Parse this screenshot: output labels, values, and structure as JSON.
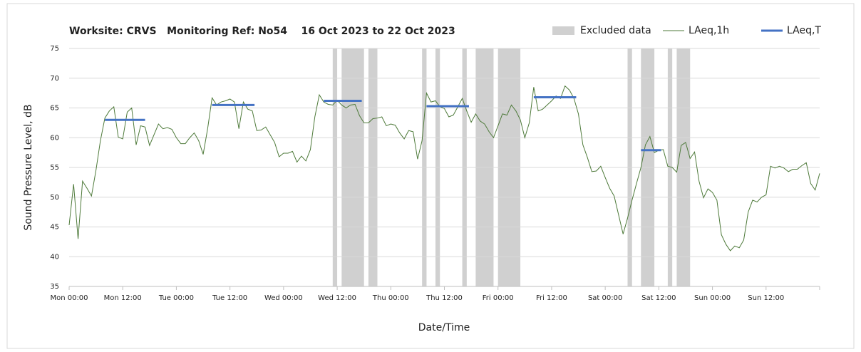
{
  "chart_data": {
    "type": "line",
    "title": "Worksite: CRVS   Monitoring Ref: No54    16 Oct 2023 to 22 Oct 2023",
    "y_label": "Sound Pressure Level, dB",
    "x_label": "Date/Time",
    "xlim": [
      0,
      168
    ],
    "xticks": [
      {
        "value": 0,
        "label": "Mon 00:00"
      },
      {
        "value": 12,
        "label": "Mon 12:00"
      },
      {
        "value": 24,
        "label": "Tue 00:00"
      },
      {
        "value": 36,
        "label": "Tue 12:00"
      },
      {
        "value": 48,
        "label": "Wed 00:00"
      },
      {
        "value": 60,
        "label": "Wed 12:00"
      },
      {
        "value": 72,
        "label": "Thu 00:00"
      },
      {
        "value": 84,
        "label": "Thu 12:00"
      },
      {
        "value": 96,
        "label": "Fri 00:00"
      },
      {
        "value": 108,
        "label": "Fri 12:00"
      },
      {
        "value": 120,
        "label": "Sat 00:00"
      },
      {
        "value": 132,
        "label": "Sat 12:00"
      },
      {
        "value": 144,
        "label": "Sun 00:00"
      },
      {
        "value": 156,
        "label": "Sun 12:00"
      },
      168
    ],
    "ylim": [
      35,
      75
    ],
    "yticks": [
      35,
      40,
      45,
      50,
      55,
      60,
      65,
      70,
      75
    ],
    "grid": true,
    "legend": "top-right",
    "excluded": {
      "name": "Excluded data",
      "color": "#d0d0d0",
      "ranges": [
        [
          59,
          60
        ],
        [
          61,
          66
        ],
        [
          67,
          69
        ],
        [
          79,
          80
        ],
        [
          82,
          83
        ],
        [
          88,
          89
        ],
        [
          91,
          95
        ],
        [
          96,
          101
        ],
        [
          125,
          126
        ],
        [
          128,
          131
        ],
        [
          134,
          135
        ],
        [
          136,
          139
        ]
      ]
    },
    "x": [
      0,
      1,
      2,
      3,
      4,
      5,
      6,
      7,
      8,
      9,
      10,
      11,
      12,
      13,
      14,
      15,
      16,
      17,
      18,
      19,
      20,
      21,
      22,
      23,
      24,
      25,
      26,
      27,
      28,
      29,
      30,
      31,
      32,
      33,
      34,
      35,
      36,
      37,
      38,
      39,
      40,
      41,
      42,
      43,
      44,
      45,
      46,
      47,
      48,
      49,
      50,
      51,
      52,
      53,
      54,
      55,
      56,
      57,
      58,
      59,
      60,
      61,
      62,
      63,
      64,
      65,
      66,
      67,
      68,
      69,
      70,
      71,
      72,
      73,
      74,
      75,
      76,
      77,
      78,
      79,
      80,
      81,
      82,
      83,
      84,
      85,
      86,
      87,
      88,
      89,
      90,
      91,
      92,
      93,
      94,
      95,
      96,
      97,
      98,
      99,
      100,
      101,
      102,
      103,
      104,
      105,
      106,
      107,
      108,
      109,
      110,
      111,
      112,
      113,
      114,
      115,
      116,
      117,
      118,
      119,
      120,
      121,
      122,
      123,
      124,
      125,
      126,
      127,
      128,
      129,
      130,
      131,
      132,
      133,
      134,
      135,
      136,
      137,
      138,
      139,
      140,
      141,
      142,
      143,
      144,
      145,
      146,
      147,
      148,
      149,
      150,
      151,
      152,
      153,
      154,
      155,
      156,
      157,
      158,
      159,
      160,
      161,
      162,
      163,
      164,
      165,
      166,
      167,
      168
    ],
    "series": [
      {
        "name": "LAeq,1h",
        "color": "#4e7a3a",
        "values": [
          45.3,
          52.2,
          43,
          52.7,
          51.5,
          50.2,
          54.5,
          59.5,
          63.3,
          64.5,
          65.2,
          60.1,
          59.8,
          64.3,
          65,
          58.8,
          62,
          61.8,
          58.7,
          60.5,
          62.3,
          61.5,
          61.7,
          61.4,
          60,
          59,
          59,
          60,
          60.8,
          59.5,
          57.2,
          61.5,
          66.7,
          65.5,
          66,
          66.2,
          66.5,
          66,
          61.5,
          66,
          64.8,
          64.5,
          61.2,
          61.3,
          61.8,
          60.5,
          59.2,
          56.8,
          57.4,
          57.4,
          57.7,
          55.9,
          56.9,
          56.1,
          58,
          63.5,
          67.2,
          66,
          65.6,
          65.5,
          66.3,
          65.5,
          65,
          65.5,
          65.6,
          63.7,
          62.5,
          62.5,
          63.2,
          63.3,
          63.5,
          62,
          62.3,
          62.1,
          60.8,
          59.8,
          61.2,
          61,
          56.4,
          59.5,
          67.5,
          66,
          66.2,
          65.2,
          64.9,
          63.5,
          63.8,
          65.2,
          66.6,
          64.5,
          62.6,
          64,
          62.8,
          62.3,
          61,
          60,
          62,
          64,
          63.8,
          65.5,
          64.5,
          63,
          60,
          62.5,
          68.5,
          64.5,
          64.8,
          65.5,
          66.2,
          67,
          66.6,
          68.7,
          68,
          66.6,
          64,
          58.8,
          56.7,
          54.3,
          54.4,
          55.2,
          53.3,
          51.5,
          50.2,
          47,
          43.8,
          46.5,
          49.5,
          52.3,
          55,
          58.8,
          60.2,
          57.5,
          57.9,
          58,
          55.2,
          55,
          54.2,
          58.7,
          59.2,
          56.5,
          57.6,
          52.7,
          49.9,
          51.4,
          50.8,
          49.5,
          43.7,
          42.1,
          41,
          41.8,
          41.5,
          42.8,
          47.5,
          49.5,
          49.2,
          50,
          50.4,
          55.2,
          54.9,
          55.2,
          54.9,
          54.3,
          54.7,
          54.7,
          55.3,
          55.8,
          52.3,
          51.2,
          54
        ]
      },
      {
        "name": "LAeq,T",
        "color": "#4472c4",
        "segments": [
          {
            "x": [
              8,
              17
            ],
            "value": 63
          },
          {
            "x": [
              32,
              41.5
            ],
            "value": 65.5
          },
          {
            "x": [
              57,
              65.5
            ],
            "value": 66.2
          },
          {
            "x": [
              80,
              89.5
            ],
            "value": 65.3
          },
          {
            "x": [
              104,
              113.5
            ],
            "value": 66.8
          },
          {
            "x": [
              128,
              132.5
            ],
            "value": 57.9
          }
        ]
      }
    ]
  }
}
